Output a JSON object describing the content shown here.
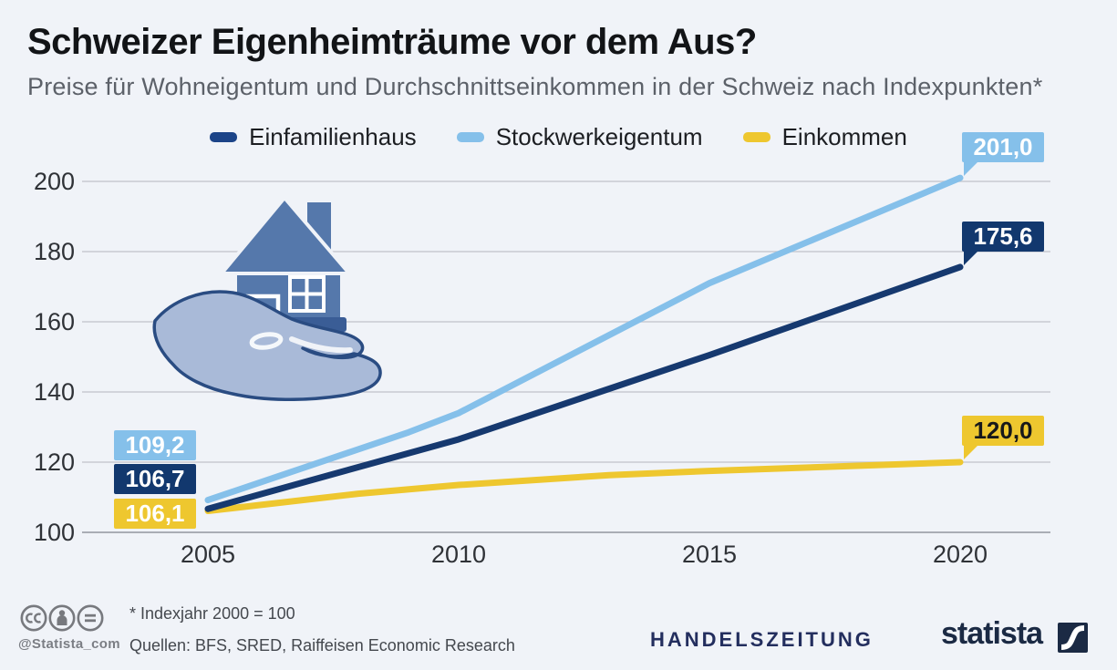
{
  "header": {
    "title": "Schweizer Eigenheimträume vor dem Aus?",
    "subtitle": "Preise für Wohneigentum und Durchschnittseinkommen in der Schweiz nach Indexpunkten*"
  },
  "legend": {
    "items": [
      {
        "label": "Einfamilienhaus",
        "color": "#1c4488"
      },
      {
        "label": "Stockwerkeigentum",
        "color": "#85c0ea"
      },
      {
        "label": "Einkommen",
        "color": "#eec72f"
      }
    ]
  },
  "chart_data": {
    "type": "line",
    "x_unit": "year",
    "xticks": [
      2005,
      2010,
      2015,
      2020
    ],
    "yticks": [
      100,
      120,
      140,
      160,
      180,
      200
    ],
    "ylim": [
      100,
      210
    ],
    "xlim": [
      2005,
      2020
    ],
    "grid": true,
    "legend_position": "top",
    "series": [
      {
        "name": "Einfamilienhaus",
        "color": "#16396f",
        "points": [
          [
            2005,
            106.7
          ],
          [
            2010,
            126.5
          ],
          [
            2015,
            150.5
          ],
          [
            2020,
            175.6
          ]
        ],
        "first_value": "106,7",
        "last_value": "175,6"
      },
      {
        "name": "Stockwerkeigentum",
        "color": "#85c0ea",
        "points": [
          [
            2005,
            109.2
          ],
          [
            2009,
            128.5
          ],
          [
            2010,
            134
          ],
          [
            2015,
            171
          ],
          [
            2020,
            201
          ]
        ],
        "first_value": "109,2",
        "last_value": "201,0"
      },
      {
        "name": "Einkommen",
        "color": "#eec72f",
        "points": [
          [
            2005,
            106.1
          ],
          [
            2008,
            111
          ],
          [
            2010,
            113.5
          ],
          [
            2013,
            116.3
          ],
          [
            2015,
            117.5
          ],
          [
            2018,
            119
          ],
          [
            2020,
            120
          ]
        ],
        "first_value": "106,1",
        "last_value": "120,0"
      }
    ]
  },
  "value_labels": {
    "left": [
      {
        "text": "109,2",
        "bg": "#85c0ea",
        "fg": "#ffffff"
      },
      {
        "text": "106,7",
        "bg": "#12386e",
        "fg": "#ffffff"
      },
      {
        "text": "106,1",
        "bg": "#eec72f",
        "fg": "#ffffff"
      }
    ],
    "right": [
      {
        "text": "201,0",
        "bg": "#85c0ea",
        "fg": "#ffffff"
      },
      {
        "text": "175,6",
        "bg": "#12386e",
        "fg": "#ffffff"
      },
      {
        "text": "120,0",
        "bg": "#eec72f",
        "fg": "#17181a"
      }
    ]
  },
  "footer": {
    "handle": "@Statista_com",
    "index_note": "* Indexjahr 2000 = 100",
    "sources": "Quellen: BFS, SRED, Raiffeisen Economic Research",
    "publisher": "HANDELSZEITUNG",
    "brand": "statista",
    "license_icons": [
      "cc",
      "by",
      "nd"
    ]
  },
  "colors": {
    "background": "#f0f3f8",
    "grid": "#c7cad1",
    "axis": "#a9adb5",
    "title": "#121417",
    "subtitle": "#5c6169",
    "tick": "#2f3237",
    "house": "#5578ab",
    "hand": "#a9bad8",
    "hand_outline": "#2a4c82"
  }
}
